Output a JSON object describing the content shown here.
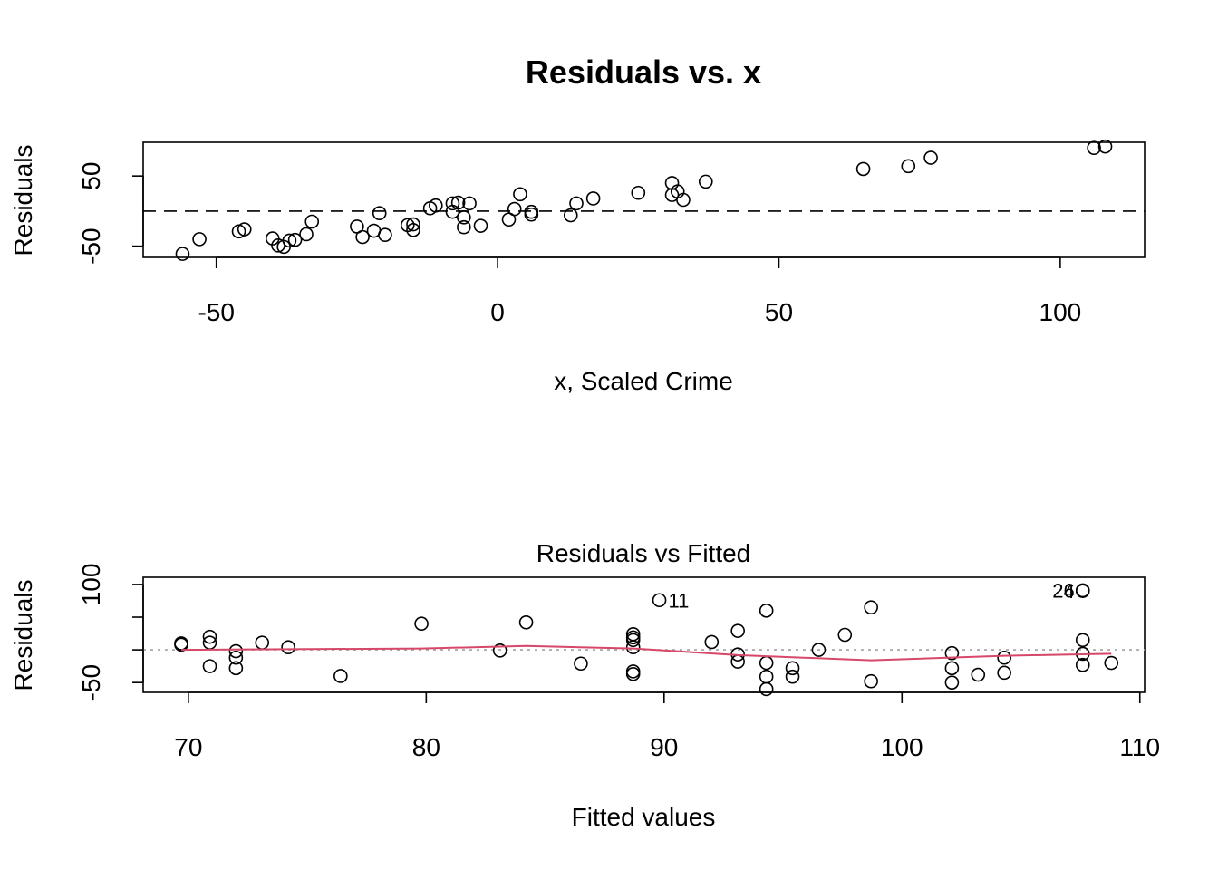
{
  "chart_data": [
    {
      "type": "scatter",
      "title": "Residuals vs. x",
      "xlabel": "x, Scaled Crime",
      "ylabel": "Residuals",
      "xlim": [
        -63,
        115
      ],
      "ylim": [
        -66,
        98
      ],
      "xticks": [
        -50,
        0,
        50,
        100
      ],
      "xtick_labels": [
        "-50",
        "0",
        "50",
        "100"
      ],
      "yticks": [
        -50,
        50
      ],
      "ytick_labels": [
        "-50",
        "50"
      ],
      "reference_line": {
        "y": 0,
        "style": "dashed"
      },
      "points": [
        {
          "x": -56,
          "y": -61
        },
        {
          "x": -53,
          "y": -40
        },
        {
          "x": -46,
          "y": -29
        },
        {
          "x": -45,
          "y": -26
        },
        {
          "x": -40,
          "y": -39
        },
        {
          "x": -39,
          "y": -49
        },
        {
          "x": -38,
          "y": -51
        },
        {
          "x": -37,
          "y": -42
        },
        {
          "x": -36,
          "y": -41
        },
        {
          "x": -34,
          "y": -33
        },
        {
          "x": -33,
          "y": -15
        },
        {
          "x": -25,
          "y": -22
        },
        {
          "x": -24,
          "y": -37
        },
        {
          "x": -22,
          "y": -28
        },
        {
          "x": -21,
          "y": -3
        },
        {
          "x": -20,
          "y": -34
        },
        {
          "x": -16,
          "y": -20
        },
        {
          "x": -15,
          "y": -27
        },
        {
          "x": -15,
          "y": -19
        },
        {
          "x": -12,
          "y": 4
        },
        {
          "x": -11,
          "y": 8
        },
        {
          "x": -8,
          "y": -1
        },
        {
          "x": -8,
          "y": 11
        },
        {
          "x": -7,
          "y": 12
        },
        {
          "x": -6,
          "y": -9
        },
        {
          "x": -6,
          "y": -23
        },
        {
          "x": -5,
          "y": 11
        },
        {
          "x": -3,
          "y": -21
        },
        {
          "x": 2,
          "y": -12
        },
        {
          "x": 3,
          "y": 3
        },
        {
          "x": 4,
          "y": 24
        },
        {
          "x": 6,
          "y": -1
        },
        {
          "x": 6,
          "y": -5
        },
        {
          "x": 13,
          "y": -6
        },
        {
          "x": 14,
          "y": 11
        },
        {
          "x": 17,
          "y": 18
        },
        {
          "x": 25,
          "y": 26
        },
        {
          "x": 31,
          "y": 40
        },
        {
          "x": 31,
          "y": 23
        },
        {
          "x": 32,
          "y": 28
        },
        {
          "x": 33,
          "y": 16
        },
        {
          "x": 37,
          "y": 42
        },
        {
          "x": 65,
          "y": 60
        },
        {
          "x": 73,
          "y": 64
        },
        {
          "x": 77,
          "y": 76
        },
        {
          "x": 106,
          "y": 90
        },
        {
          "x": 108,
          "y": 92
        }
      ]
    },
    {
      "type": "scatter",
      "title": "Residuals vs Fitted",
      "xlabel": "Fitted values",
      "ylabel": "Residuals",
      "xlim": [
        68.1,
        110.2
      ],
      "ylim": [
        -65,
        111
      ],
      "xticks": [
        70,
        80,
        90,
        100,
        110
      ],
      "xtick_labels": [
        "70",
        "80",
        "90",
        "100",
        "110"
      ],
      "yticks": [
        -50,
        0,
        50,
        100
      ],
      "ytick_labels": [
        "-50",
        "",
        "",
        "100"
      ],
      "reference_line": {
        "y": 0,
        "style": "dotted",
        "color": "#a0a0a0"
      },
      "smooth_color": "#d6476a",
      "points": [
        {
          "x": 69.7,
          "y": 10
        },
        {
          "x": 69.7,
          "y": 8
        },
        {
          "x": 70.9,
          "y": 20
        },
        {
          "x": 70.9,
          "y": 11
        },
        {
          "x": 70.9,
          "y": -25
        },
        {
          "x": 72.0,
          "y": -2
        },
        {
          "x": 72.0,
          "y": -12
        },
        {
          "x": 72.0,
          "y": -28
        },
        {
          "x": 73.1,
          "y": 11
        },
        {
          "x": 74.2,
          "y": 4
        },
        {
          "x": 76.4,
          "y": -40
        },
        {
          "x": 79.8,
          "y": 40
        },
        {
          "x": 83.1,
          "y": -1
        },
        {
          "x": 84.2,
          "y": 42
        },
        {
          "x": 86.5,
          "y": -21
        },
        {
          "x": 88.7,
          "y": 24
        },
        {
          "x": 88.7,
          "y": 19
        },
        {
          "x": 88.7,
          "y": 15
        },
        {
          "x": 88.7,
          "y": 4
        },
        {
          "x": 88.7,
          "y": -33
        },
        {
          "x": 88.7,
          "y": -37
        },
        {
          "x": 89.8,
          "y": 76
        },
        {
          "x": 92.0,
          "y": 12
        },
        {
          "x": 93.1,
          "y": 29
        },
        {
          "x": 93.1,
          "y": -7
        },
        {
          "x": 93.1,
          "y": -18
        },
        {
          "x": 94.3,
          "y": 60
        },
        {
          "x": 94.3,
          "y": -20
        },
        {
          "x": 94.3,
          "y": -41
        },
        {
          "x": 94.3,
          "y": -60
        },
        {
          "x": 95.4,
          "y": -28
        },
        {
          "x": 95.4,
          "y": -41
        },
        {
          "x": 96.5,
          "y": 0
        },
        {
          "x": 97.6,
          "y": 23
        },
        {
          "x": 98.7,
          "y": 65
        },
        {
          "x": 98.7,
          "y": -48
        },
        {
          "x": 102.1,
          "y": -5
        },
        {
          "x": 102.1,
          "y": -28
        },
        {
          "x": 102.1,
          "y": -50
        },
        {
          "x": 103.2,
          "y": -38
        },
        {
          "x": 104.3,
          "y": -12
        },
        {
          "x": 104.3,
          "y": -35
        },
        {
          "x": 107.6,
          "y": 91
        },
        {
          "x": 107.6,
          "y": 90
        },
        {
          "x": 107.6,
          "y": 15
        },
        {
          "x": 107.6,
          "y": -6
        },
        {
          "x": 107.6,
          "y": -23
        },
        {
          "x": 108.8,
          "y": -20
        }
      ],
      "smooth_line": [
        {
          "x": 69.7,
          "y": 0
        },
        {
          "x": 74.2,
          "y": 1
        },
        {
          "x": 79.8,
          "y": 2
        },
        {
          "x": 84.2,
          "y": 6
        },
        {
          "x": 88.7,
          "y": 2
        },
        {
          "x": 93.1,
          "y": -8
        },
        {
          "x": 98.7,
          "y": -16
        },
        {
          "x": 104.3,
          "y": -9
        },
        {
          "x": 108.8,
          "y": -6
        }
      ],
      "annotations": [
        {
          "label": "11",
          "x": 89.8,
          "y": 76,
          "side": "right"
        },
        {
          "label": "26",
          "x": 107.6,
          "y": 91,
          "side": "left"
        },
        {
          "label": "4",
          "x": 107.6,
          "y": 90,
          "side": "left"
        }
      ]
    }
  ]
}
